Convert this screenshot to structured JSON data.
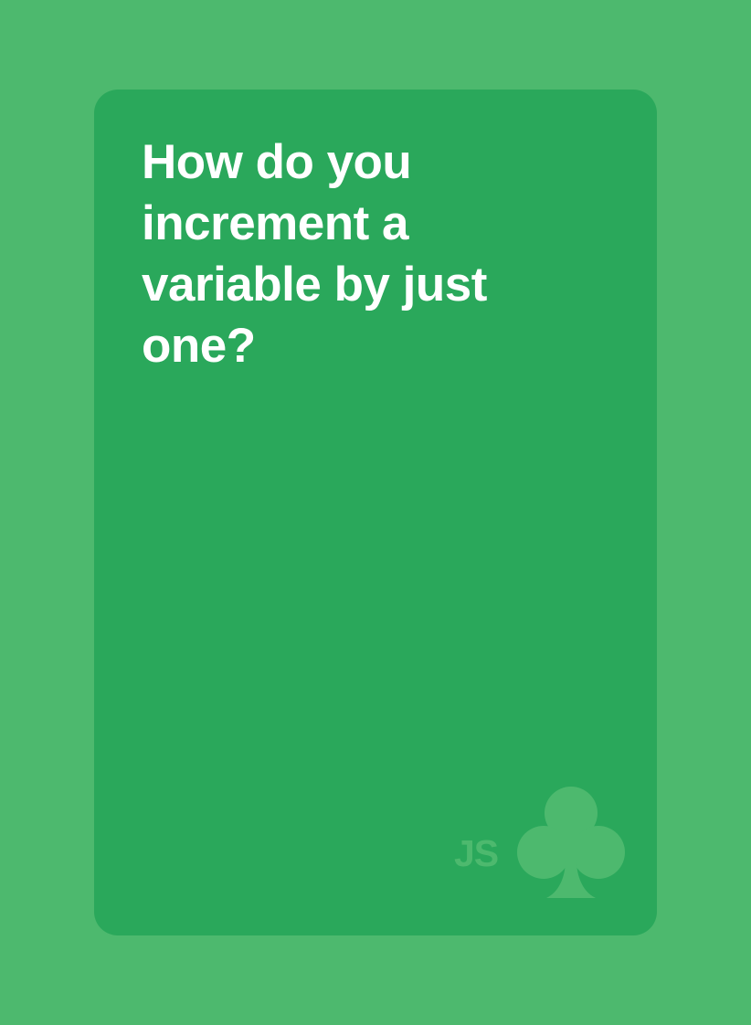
{
  "card": {
    "question": "How do you increment a variable by just one?",
    "brand_label": "JS",
    "brand_icon": "club-icon"
  },
  "colors": {
    "background": "#4db96e",
    "card": "#2aa85b",
    "text": "#ffffff",
    "brand": "#4db96e"
  }
}
